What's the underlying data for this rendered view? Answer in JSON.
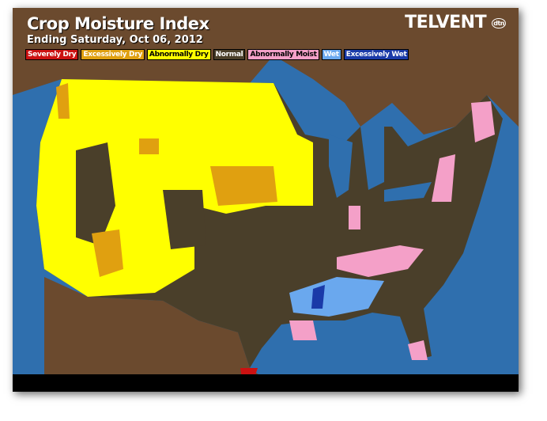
{
  "header": {
    "title": "Crop Moisture Index",
    "subtitle": "Ending Saturday, Oct 06, 2012",
    "logo": "TELVENT",
    "logo_badge": "dtn"
  },
  "legend": [
    {
      "label": "Severely Dry",
      "color": "#cc1111",
      "text": "#fff"
    },
    {
      "label": "Excessively Dry",
      "color": "#e0a010",
      "text": "#fff"
    },
    {
      "label": "Abnormally Dry",
      "color": "#ffff00",
      "text": "#000"
    },
    {
      "label": "Normal",
      "color": "#4a3f2a",
      "text": "#fff"
    },
    {
      "label": "Abnormally Moist",
      "color": "#f4a0c8",
      "text": "#000"
    },
    {
      "label": "Wet",
      "color": "#6aa8ee",
      "text": "#fff"
    },
    {
      "label": "Excessively Wet",
      "color": "#1a3aa8",
      "text": "#fff"
    }
  ],
  "colors": {
    "ocean": "#2f6fae",
    "land": "#6b4a2e"
  }
}
